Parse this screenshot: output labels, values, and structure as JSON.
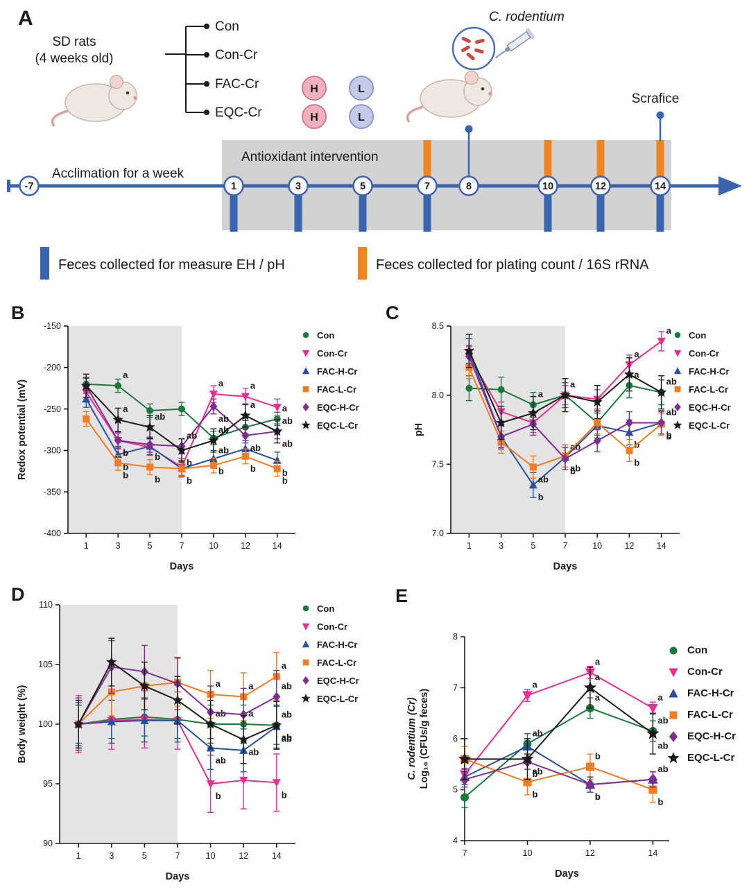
{
  "panel_a": {
    "label": "A",
    "rats_line1": "SD rats",
    "rats_line2": "(4 weeks old)",
    "groups": [
      "Con",
      "Con-Cr",
      "FAC-Cr",
      "EQC-Cr"
    ],
    "dose_high": "H",
    "dose_low": "L",
    "pathogen": "C. rodentium",
    "sacrifice": "Scrafice",
    "acclimation": "Acclimation for a week",
    "intervention": "Antioxidant intervention",
    "timeline_days": [
      "-7",
      "1",
      "3",
      "5",
      "7",
      "8",
      "10",
      "12",
      "14"
    ],
    "timeline_color": "#3a64ad",
    "eh_bar_color": "#3a64ad",
    "rrna_bar_color": "#ef8423",
    "legend": [
      {
        "text": "Feces collected for measure EH / pH"
      },
      {
        "text": "Feces collected for plating count / 16S rRNA"
      }
    ]
  },
  "chart_data": [
    {
      "panel": "B",
      "type": "line",
      "x": [
        "1",
        "3",
        "5",
        "7",
        "10",
        "12",
        "14"
      ],
      "xlabel": "Days",
      "ylabel_lines": [
        {
          "text": "Redox potential (mV)"
        }
      ],
      "ylim": [
        -400,
        -150
      ],
      "yticks": [
        {
          "v": -150,
          "l": "-150"
        },
        {
          "v": -200,
          "l": "-200"
        },
        {
          "v": -250,
          "l": "-250"
        },
        {
          "v": -300,
          "l": "-300"
        },
        {
          "v": -350,
          "l": "-350"
        },
        {
          "v": -400,
          "l": "-400"
        }
      ],
      "shade_to": "7",
      "series": [
        {
          "name": "Con",
          "color": "#1a7a3e",
          "marker": "circle",
          "err": 8,
          "values": [
            -220,
            -222,
            -252,
            -250,
            -285,
            -272,
            -262
          ],
          "labels": [
            {
              "x": "3",
              "t": "a",
              "pos": "above"
            },
            {
              "x": "10",
              "t": "ab",
              "pos": "below"
            },
            {
              "x": "14",
              "t": "a",
              "pos": "above"
            }
          ]
        },
        {
          "name": "Con-Cr",
          "color": "#ed2d91",
          "marker": "triangle-down",
          "err": 10,
          "values": [
            -230,
            -288,
            -296,
            -320,
            -232,
            -235,
            -248
          ],
          "labels": [
            {
              "x": "3",
              "t": "b",
              "pos": "below"
            },
            {
              "x": "10",
              "t": "a",
              "pos": "above"
            },
            {
              "x": "12",
              "t": "a",
              "pos": "above"
            }
          ]
        },
        {
          "name": "FAC-H-Cr",
          "color": "#27519f",
          "marker": "triangle-up",
          "err": 10,
          "values": [
            -238,
            -305,
            -295,
            -322,
            -310,
            -298,
            -312
          ],
          "labels": [
            {
              "x": "3",
              "t": "b",
              "pos": "below"
            },
            {
              "x": "7",
              "t": "b",
              "pos": "below"
            },
            {
              "x": "10",
              "t": "b",
              "pos": "below"
            },
            {
              "x": "14",
              "t": "b",
              "pos": "below"
            }
          ]
        },
        {
          "name": "FAC-L-Cr",
          "color": "#f47b20",
          "marker": "square",
          "err": 9,
          "values": [
            -262,
            -315,
            -320,
            -322,
            -318,
            -307,
            -322
          ],
          "labels": [
            {
              "x": "3",
              "t": "b",
              "pos": "below"
            },
            {
              "x": "5",
              "t": "b",
              "pos": "below"
            },
            {
              "x": "12",
              "t": "b",
              "pos": "below"
            },
            {
              "x": "14",
              "t": "b",
              "pos": "below"
            }
          ]
        },
        {
          "name": "EQC-H-Cr",
          "color": "#7c2f8e",
          "marker": "diamond",
          "err": 9,
          "values": [
            -222,
            -288,
            -293,
            -295,
            -247,
            -282,
            -277
          ],
          "labels": [
            {
              "x": "3",
              "t": "b",
              "pos": "below"
            },
            {
              "x": "5",
              "t": "b",
              "pos": "below"
            },
            {
              "x": "7",
              "t": "ab",
              "pos": "above"
            },
            {
              "x": "10",
              "t": "ab",
              "pos": "below"
            },
            {
              "x": "12",
              "t": "ab",
              "pos": "below"
            },
            {
              "x": "14",
              "t": "ab",
              "pos": "below"
            }
          ]
        },
        {
          "name": "EQC-L-Cr",
          "color": "#1a1a1a",
          "marker": "star",
          "err": 14,
          "values": [
            -222,
            -263,
            -272,
            -300,
            -288,
            -258,
            -277
          ],
          "labels": [
            {
              "x": "3",
              "t": "a",
              "pos": "above"
            },
            {
              "x": "5",
              "t": "ab",
              "pos": "above"
            },
            {
              "x": "7",
              "t": "b",
              "pos": "below"
            },
            {
              "x": "10",
              "t": "ab",
              "pos": "above"
            },
            {
              "x": "12",
              "t": "a",
              "pos": "above"
            },
            {
              "x": "14",
              "t": "ab",
              "pos": "above"
            }
          ]
        }
      ]
    },
    {
      "panel": "C",
      "type": "line",
      "x": [
        "1",
        "3",
        "5",
        "7",
        "10",
        "12",
        "14"
      ],
      "xlabel": "Days",
      "ylabel_lines": [
        {
          "text": "pH"
        }
      ],
      "ylim": [
        7.0,
        8.5
      ],
      "yticks": [
        {
          "v": 8.5,
          "l": "8.5"
        },
        {
          "v": 8.0,
          "l": "8.0"
        },
        {
          "v": 7.5,
          "l": "7.5"
        },
        {
          "v": 7.0,
          "l": "7.0"
        }
      ],
      "shade_to": "7",
      "series": [
        {
          "name": "Con",
          "color": "#1a7a3e",
          "marker": "circle",
          "err": 0.09,
          "values": [
            8.05,
            8.04,
            7.93,
            8.0,
            7.8,
            8.07,
            8.02
          ],
          "labels": [
            {
              "x": "5",
              "t": "a",
              "pos": "above"
            },
            {
              "x": "7",
              "t": "a",
              "pos": "above"
            },
            {
              "x": "12",
              "t": "a",
              "pos": "above"
            }
          ]
        },
        {
          "name": "Con-Cr",
          "color": "#ed2d91",
          "marker": "triangle-down",
          "err": 0.07,
          "values": [
            8.28,
            7.88,
            7.8,
            8.0,
            7.97,
            8.22,
            8.39
          ],
          "labels": [
            {
              "x": "12",
              "t": "a",
              "pos": "above"
            },
            {
              "x": "14",
              "t": "a",
              "pos": "above"
            }
          ]
        },
        {
          "name": "FAC-H-Cr",
          "color": "#27519f",
          "marker": "triangle-up",
          "err": 0.09,
          "values": [
            8.32,
            7.7,
            7.35,
            7.55,
            7.78,
            7.73,
            7.8
          ],
          "labels": [
            {
              "x": "5",
              "t": "b",
              "pos": "below"
            },
            {
              "x": "7",
              "t": "ab",
              "pos": "above"
            },
            {
              "x": "12",
              "t": "b",
              "pos": "below"
            },
            {
              "x": "14",
              "t": "b",
              "pos": "below"
            }
          ]
        },
        {
          "name": "FAC-L-Cr",
          "color": "#f47b20",
          "marker": "square",
          "err": 0.08,
          "values": [
            8.2,
            7.66,
            7.48,
            7.56,
            7.8,
            7.6,
            7.79
          ],
          "labels": [
            {
              "x": "5",
              "t": "ab",
              "pos": "below"
            },
            {
              "x": "7",
              "t": "ab",
              "pos": "below"
            },
            {
              "x": "12",
              "t": "b",
              "pos": "below"
            },
            {
              "x": "14",
              "t": "b",
              "pos": "below"
            }
          ]
        },
        {
          "name": "EQC-H-Cr",
          "color": "#7c2f8e",
          "marker": "diamond",
          "err": 0.08,
          "values": [
            8.28,
            7.7,
            7.79,
            7.54,
            7.67,
            7.8,
            7.8
          ],
          "labels": [
            {
              "x": "7",
              "t": "b",
              "pos": "below"
            },
            {
              "x": "14",
              "t": "ab",
              "pos": "above"
            }
          ]
        },
        {
          "name": "EQC-L-Cr",
          "color": "#1a1a1a",
          "marker": "star",
          "err": 0.12,
          "values": [
            8.32,
            7.8,
            7.87,
            8.0,
            7.95,
            8.15,
            8.02
          ],
          "labels": [
            {
              "x": "14",
              "t": "ab",
              "pos": "above"
            }
          ]
        }
      ]
    },
    {
      "panel": "D",
      "type": "line",
      "x": [
        "1",
        "3",
        "5",
        "7",
        "10",
        "12",
        "14"
      ],
      "xlabel": "Days",
      "ylabel_lines": [
        {
          "text": "Body weight (%)"
        }
      ],
      "ylim": [
        90,
        110
      ],
      "yticks": [
        {
          "v": 110,
          "l": "110"
        },
        {
          "v": 105,
          "l": "105"
        },
        {
          "v": 100,
          "l": "100"
        },
        {
          "v": 95,
          "l": "95"
        },
        {
          "v": 90,
          "l": "90"
        }
      ],
      "shade_to": "7",
      "series": [
        {
          "name": "Con",
          "color": "#1a7a3e",
          "marker": "circle",
          "err": 1.6,
          "values": [
            100,
            100.4,
            100.6,
            100.4,
            100.0,
            100.0,
            99.9
          ],
          "labels": [
            {
              "x": "10",
              "t": "ab",
              "pos": "above"
            },
            {
              "x": "12",
              "t": "a",
              "pos": "above"
            },
            {
              "x": "14",
              "t": "ab",
              "pos": "above"
            }
          ]
        },
        {
          "name": "Con-Cr",
          "color": "#ed2d91",
          "marker": "triangle-down",
          "err": 2.4,
          "values": [
            100,
            100.3,
            100.4,
            100.3,
            95.0,
            95.3,
            95.1
          ],
          "labels": [
            {
              "x": "10",
              "t": "b",
              "pos": "below"
            },
            {
              "x": "14",
              "t": "b",
              "pos": "below"
            }
          ]
        },
        {
          "name": "FAC-H-Cr",
          "color": "#27519f",
          "marker": "triangle-up",
          "err": 1.8,
          "values": [
            100,
            100.2,
            100.3,
            100.3,
            98.0,
            97.8,
            99.8
          ],
          "labels": [
            {
              "x": "10",
              "t": "ab",
              "pos": "below"
            },
            {
              "x": "14",
              "t": "ab",
              "pos": "below"
            }
          ]
        },
        {
          "name": "FAC-L-Cr",
          "color": "#f47b20",
          "marker": "square",
          "err": 2.0,
          "values": [
            100,
            102.7,
            103.2,
            103.5,
            102.5,
            102.3,
            104.0
          ],
          "labels": [
            {
              "x": "10",
              "t": "a",
              "pos": "above"
            },
            {
              "x": "12",
              "t": "a",
              "pos": "above"
            },
            {
              "x": "14",
              "t": "a",
              "pos": "above"
            }
          ]
        },
        {
          "name": "EQC-H-Cr",
          "color": "#7c2f8e",
          "marker": "diamond",
          "err": 2.2,
          "values": [
            100,
            104.8,
            104.4,
            103.4,
            101.0,
            100.8,
            102.3
          ],
          "labels": [
            {
              "x": "14",
              "t": "ab",
              "pos": "above"
            }
          ]
        },
        {
          "name": "EQC-L-Cr",
          "color": "#1a1a1a",
          "marker": "star",
          "err": 2.0,
          "values": [
            100,
            105.2,
            103.2,
            102.0,
            100.0,
            98.7,
            99.9
          ],
          "labels": [
            {
              "x": "12",
              "t": "ab",
              "pos": "below"
            },
            {
              "x": "14",
              "t": "ab",
              "pos": "below"
            }
          ]
        }
      ]
    },
    {
      "panel": "E",
      "type": "line",
      "x": [
        "7",
        "10",
        "12",
        "14"
      ],
      "x_start_at_axis": true,
      "marker_size": 6,
      "xlabel": "Days",
      "ylabel_lines": [
        {
          "text": "C. rodentium (Cr)",
          "italic": true
        },
        {
          "text": "Log₁₀ (CFUs/g feces)"
        }
      ],
      "ylim": [
        4,
        8
      ],
      "yticks": [
        {
          "v": 8,
          "l": "8"
        },
        {
          "v": 7,
          "l": "7"
        },
        {
          "v": 6,
          "l": "6"
        },
        {
          "v": 5,
          "l": "5"
        },
        {
          "v": 4,
          "l": "4"
        }
      ],
      "shade_to": null,
      "series": [
        {
          "name": "Con",
          "color": "#1a7a3e",
          "marker": "circle",
          "err": 0.2,
          "values": [
            4.85,
            5.9,
            6.6,
            6.15
          ],
          "labels": [
            {
              "x": "10",
              "t": "ab",
              "pos": "above"
            },
            {
              "x": "12",
              "t": "a",
              "pos": "above"
            },
            {
              "x": "14",
              "t": "ab",
              "pos": "above"
            }
          ]
        },
        {
          "name": "Con-Cr",
          "color": "#ed2d91",
          "marker": "triangle-down",
          "err": 0.12,
          "values": [
            5.3,
            6.85,
            7.3,
            6.6
          ],
          "labels": [
            {
              "x": "10",
              "t": "a",
              "pos": "above"
            },
            {
              "x": "12",
              "t": "a",
              "pos": "above"
            },
            {
              "x": "14",
              "t": "a",
              "pos": "above"
            }
          ]
        },
        {
          "name": "FAC-H-Cr",
          "color": "#27519f",
          "marker": "triangle-up",
          "err": 0.15,
          "values": [
            5.25,
            5.85,
            5.1,
            5.2
          ],
          "labels": [
            {
              "x": "12",
              "t": "b",
              "pos": "below"
            },
            {
              "x": "14",
              "t": "ab",
              "pos": "above"
            }
          ]
        },
        {
          "name": "FAC-L-Cr",
          "color": "#f47b20",
          "marker": "square",
          "err": 0.25,
          "values": [
            5.6,
            5.15,
            5.45,
            5.0
          ],
          "labels": [
            {
              "x": "10",
              "t": "b",
              "pos": "below"
            },
            {
              "x": "12",
              "t": "b",
              "pos": "above"
            },
            {
              "x": "14",
              "t": "b",
              "pos": "below"
            }
          ]
        },
        {
          "name": "EQC-H-Cr",
          "color": "#7c2f8e",
          "marker": "diamond",
          "err": 0.15,
          "values": [
            5.2,
            5.55,
            5.1,
            5.2
          ],
          "labels": [
            {
              "x": "10",
              "t": "b",
              "pos": "below"
            },
            {
              "x": "12",
              "t": "b",
              "pos": "below"
            }
          ]
        },
        {
          "name": "EQC-L-Cr",
          "color": "#1a1a1a",
          "marker": "star",
          "err": 0.4,
          "values": [
            5.6,
            5.6,
            7.0,
            6.1
          ],
          "labels": [
            {
              "x": "10",
              "t": "ab",
              "pos": "below"
            },
            {
              "x": "12",
              "t": "a",
              "pos": "above"
            },
            {
              "x": "14",
              "t": "ab",
              "pos": "below"
            }
          ]
        }
      ]
    }
  ]
}
